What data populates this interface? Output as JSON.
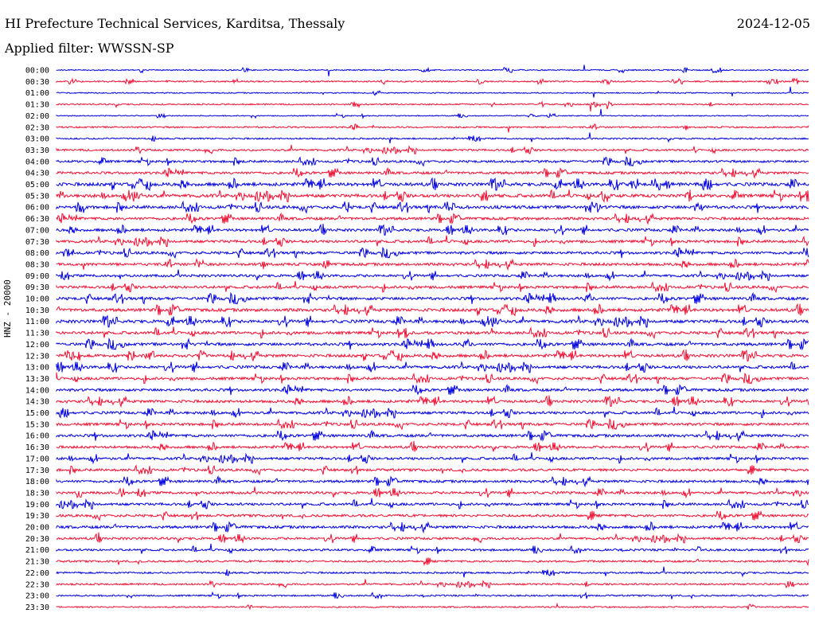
{
  "header": {
    "title": "HI Prefecture Technical Services, Karditsa, Thessaly",
    "date": "2024-12-05",
    "filter": "Applied filter: WWSSN-SP"
  },
  "chart_data": {
    "type": "line",
    "ylabel": "HNZ - 20000",
    "row_labels": [
      "00:00",
      "00:30",
      "01:00",
      "01:30",
      "02:00",
      "02:30",
      "03:00",
      "03:30",
      "04:00",
      "04:30",
      "05:00",
      "05:30",
      "06:00",
      "06:30",
      "07:00",
      "07:30",
      "08:00",
      "08:30",
      "09:00",
      "09:30",
      "10:00",
      "10:30",
      "11:00",
      "11:30",
      "12:00",
      "12:30",
      "13:00",
      "13:30",
      "14:00",
      "14:30",
      "15:00",
      "15:30",
      "16:00",
      "16:30",
      "17:00",
      "17:30",
      "18:00",
      "18:30",
      "19:00",
      "19:30",
      "20:00",
      "20:30",
      "21:00",
      "21:30",
      "22:00",
      "22:30",
      "23:00",
      "23:30"
    ],
    "colors": [
      "#0000dd",
      "#ee1133"
    ],
    "activity": [
      0.15,
      0.2,
      0.12,
      0.2,
      0.1,
      0.25,
      0.25,
      0.35,
      0.45,
      0.5,
      0.7,
      0.7,
      0.65,
      0.55,
      0.55,
      0.55,
      0.55,
      0.55,
      0.5,
      0.55,
      0.6,
      0.65,
      0.65,
      0.6,
      0.6,
      0.6,
      0.6,
      0.55,
      0.55,
      0.55,
      0.55,
      0.55,
      0.55,
      0.5,
      0.5,
      0.5,
      0.5,
      0.5,
      0.5,
      0.5,
      0.55,
      0.45,
      0.4,
      0.35,
      0.3,
      0.3,
      0.25,
      0.2
    ]
  }
}
